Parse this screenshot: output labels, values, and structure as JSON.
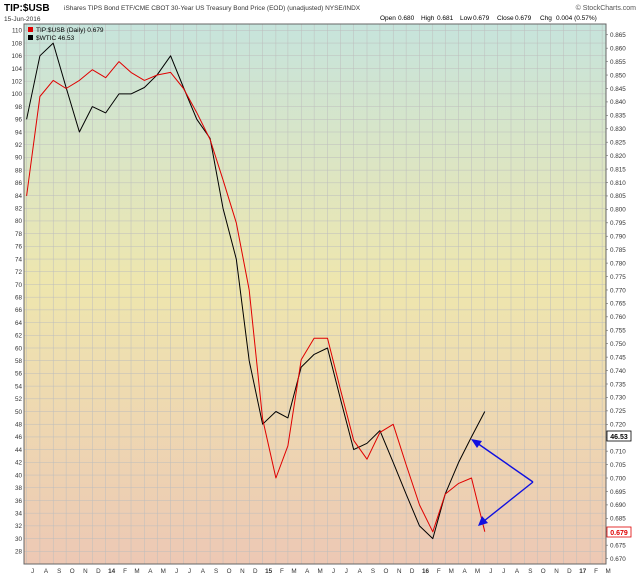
{
  "header": {
    "symbol": "TIP:$USB",
    "description": "iShares TIPS Bond ETF/CME CBOT 30-Year US Treasury Bond Price (EOD) (unadjusted) NYSE/INDX",
    "date": "15-Jun-2016",
    "source": "© StockCharts.com",
    "open_label": "Open",
    "open_value": "0.680",
    "high_label": "High",
    "high_value": "0.681",
    "low_label": "Low",
    "low_value": "0.679",
    "close_label": "Close",
    "close_value": "0.679",
    "chg_label": "Chg",
    "chg_value": "0.004 (0.57%)"
  },
  "legend": [
    {
      "label": "TIP:$USB (Daily) 0.679",
      "color": "#e00000"
    },
    {
      "label": "$WTIC 46.53",
      "color": "#000000"
    }
  ],
  "colors": {
    "ratio": "#e00000",
    "wtic": "#000000",
    "arrow": "#1010e0",
    "bg_top": "#c6e4dc",
    "bg_mid": "#eee6ae",
    "bg_bottom": "#edc8b4"
  },
  "chart_data": {
    "type": "line",
    "x": [
      "2013-07-01",
      "2013-08-01",
      "2013-09-01",
      "2013-10-01",
      "2013-11-01",
      "2013-12-01",
      "2014-01-01",
      "2014-02-01",
      "2014-03-01",
      "2014-04-01",
      "2014-05-01",
      "2014-06-01",
      "2014-07-01",
      "2014-08-01",
      "2014-09-01",
      "2014-10-01",
      "2014-11-01",
      "2014-12-01",
      "2015-01-01",
      "2015-02-01",
      "2015-03-01",
      "2015-04-01",
      "2015-05-01",
      "2015-06-01",
      "2015-07-01",
      "2015-08-01",
      "2015-09-01",
      "2015-10-01",
      "2015-11-01",
      "2015-12-01",
      "2016-01-01",
      "2016-02-01",
      "2016-03-01",
      "2016-04-01",
      "2016-05-01",
      "2016-06-01"
    ],
    "x_range": [
      "2013-06-25",
      "2017-03-10"
    ],
    "series": [
      {
        "name": "$WTIC 46.53",
        "axis": "left",
        "color": "#000000",
        "values": [
          96,
          106,
          108,
          101,
          94,
          98,
          97,
          100,
          100,
          101,
          103,
          106,
          101,
          96,
          93,
          82,
          74,
          58,
          48,
          50,
          49,
          57,
          59,
          60,
          52,
          44,
          45,
          47,
          42,
          37,
          32,
          30,
          37,
          42,
          46,
          50
        ]
      },
      {
        "name": "TIP:$USB (Daily) 0.679",
        "axis": "right",
        "color": "#e00000",
        "values": [
          0.805,
          0.842,
          0.848,
          0.845,
          0.848,
          0.852,
          0.849,
          0.855,
          0.851,
          0.848,
          0.85,
          0.851,
          0.845,
          0.836,
          0.826,
          0.811,
          0.795,
          0.77,
          0.722,
          0.7,
          0.712,
          0.744,
          0.752,
          0.752,
          0.733,
          0.714,
          0.707,
          0.717,
          0.72,
          0.705,
          0.69,
          0.68,
          0.694,
          0.698,
          0.7,
          0.68
        ]
      }
    ],
    "left_axis": {
      "ylim": [
        26,
        111
      ],
      "ticks": [
        28,
        30,
        32,
        34,
        36,
        38,
        40,
        42,
        44,
        46,
        48,
        50,
        52,
        54,
        56,
        58,
        60,
        62,
        64,
        66,
        68,
        70,
        72,
        74,
        76,
        78,
        80,
        82,
        84,
        86,
        88,
        90,
        92,
        94,
        96,
        98,
        100,
        102,
        104,
        106,
        108,
        110
      ]
    },
    "right_axis": {
      "ylim": [
        0.668,
        0.869
      ],
      "ticks": [
        "0.670",
        "0.675",
        "0.680",
        "0.685",
        "0.690",
        "0.695",
        "0.700",
        "0.705",
        "0.710",
        "0.715",
        "0.720",
        "0.725",
        "0.730",
        "0.735",
        "0.740",
        "0.745",
        "0.750",
        "0.755",
        "0.760",
        "0.765",
        "0.770",
        "0.775",
        "0.780",
        "0.785",
        "0.790",
        "0.795",
        "0.800",
        "0.805",
        "0.810",
        "0.815",
        "0.820",
        "0.825",
        "0.830",
        "0.835",
        "0.840",
        "0.845",
        "0.850",
        "0.855",
        "0.860",
        "0.865"
      ]
    },
    "x_tick_labels": [
      "J",
      "A",
      "S",
      "O",
      "N",
      "D",
      "14",
      "F",
      "M",
      "A",
      "M",
      "J",
      "J",
      "A",
      "S",
      "O",
      "N",
      "D",
      "15",
      "F",
      "M",
      "A",
      "M",
      "J",
      "J",
      "A",
      "S",
      "O",
      "N",
      "D",
      "16",
      "F",
      "M",
      "A",
      "M",
      "J",
      "J",
      "A",
      "S",
      "O",
      "N",
      "D",
      "17",
      "F",
      "M"
    ],
    "last_value_labels": {
      "left": "46.53",
      "right": "0.679"
    },
    "grid": true,
    "legend_position": "top-left"
  }
}
